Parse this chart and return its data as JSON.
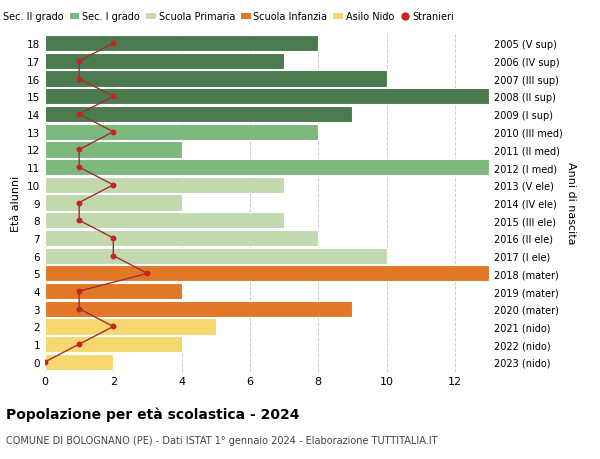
{
  "ages": [
    18,
    17,
    16,
    15,
    14,
    13,
    12,
    11,
    10,
    9,
    8,
    7,
    6,
    5,
    4,
    3,
    2,
    1,
    0
  ],
  "years": [
    "2005 (V sup)",
    "2006 (IV sup)",
    "2007 (III sup)",
    "2008 (II sup)",
    "2009 (I sup)",
    "2010 (III med)",
    "2011 (II med)",
    "2012 (I med)",
    "2013 (V ele)",
    "2014 (IV ele)",
    "2015 (III ele)",
    "2016 (II ele)",
    "2017 (I ele)",
    "2018 (mater)",
    "2019 (mater)",
    "2020 (mater)",
    "2021 (nido)",
    "2022 (nido)",
    "2023 (nido)"
  ],
  "bar_values": [
    8,
    7,
    10,
    13,
    9,
    8,
    4,
    13,
    7,
    4,
    7,
    8,
    10,
    13,
    4,
    9,
    5,
    4,
    2
  ],
  "bar_colors": [
    "#4a7a4e",
    "#4a7a4e",
    "#4a7a4e",
    "#4a7a4e",
    "#4a7a4e",
    "#7db87d",
    "#7db87d",
    "#7db87d",
    "#c2d9b0",
    "#c2d9b0",
    "#c2d9b0",
    "#c2d9b0",
    "#c2d9b0",
    "#e07828",
    "#e07828",
    "#e07828",
    "#f5d870",
    "#f5d870",
    "#f5d870"
  ],
  "stranieri_values": [
    2,
    1,
    1,
    2,
    1,
    2,
    1,
    1,
    2,
    1,
    1,
    2,
    2,
    3,
    1,
    1,
    2,
    1,
    0
  ],
  "title": "Popolazione per età scolastica - 2024",
  "subtitle": "COMUNE DI BOLOGNANO (PE) - Dati ISTAT 1° gennaio 2024 - Elaborazione TUTTITALIA.IT",
  "ylabel_left": "Età alunni",
  "ylabel_right": "Anni di nascita",
  "xlim": [
    0,
    13
  ],
  "xticks": [
    0,
    2,
    4,
    6,
    8,
    10,
    12
  ],
  "legend_labels": [
    "Sec. II grado",
    "Sec. I grado",
    "Scuola Primaria",
    "Scuola Infanzia",
    "Asilo Nido",
    "Stranieri"
  ],
  "legend_colors": [
    "#4a7a4e",
    "#7db87d",
    "#c2d9b0",
    "#e07828",
    "#f5d870",
    "#cc2222"
  ],
  "bar_height": 0.92,
  "bg_color": "#ffffff",
  "grid_color": "#cccccc",
  "stranieri_line_color": "#993333",
  "stranieri_dot_color": "#cc2222",
  "stranieri_dot_size": 18
}
